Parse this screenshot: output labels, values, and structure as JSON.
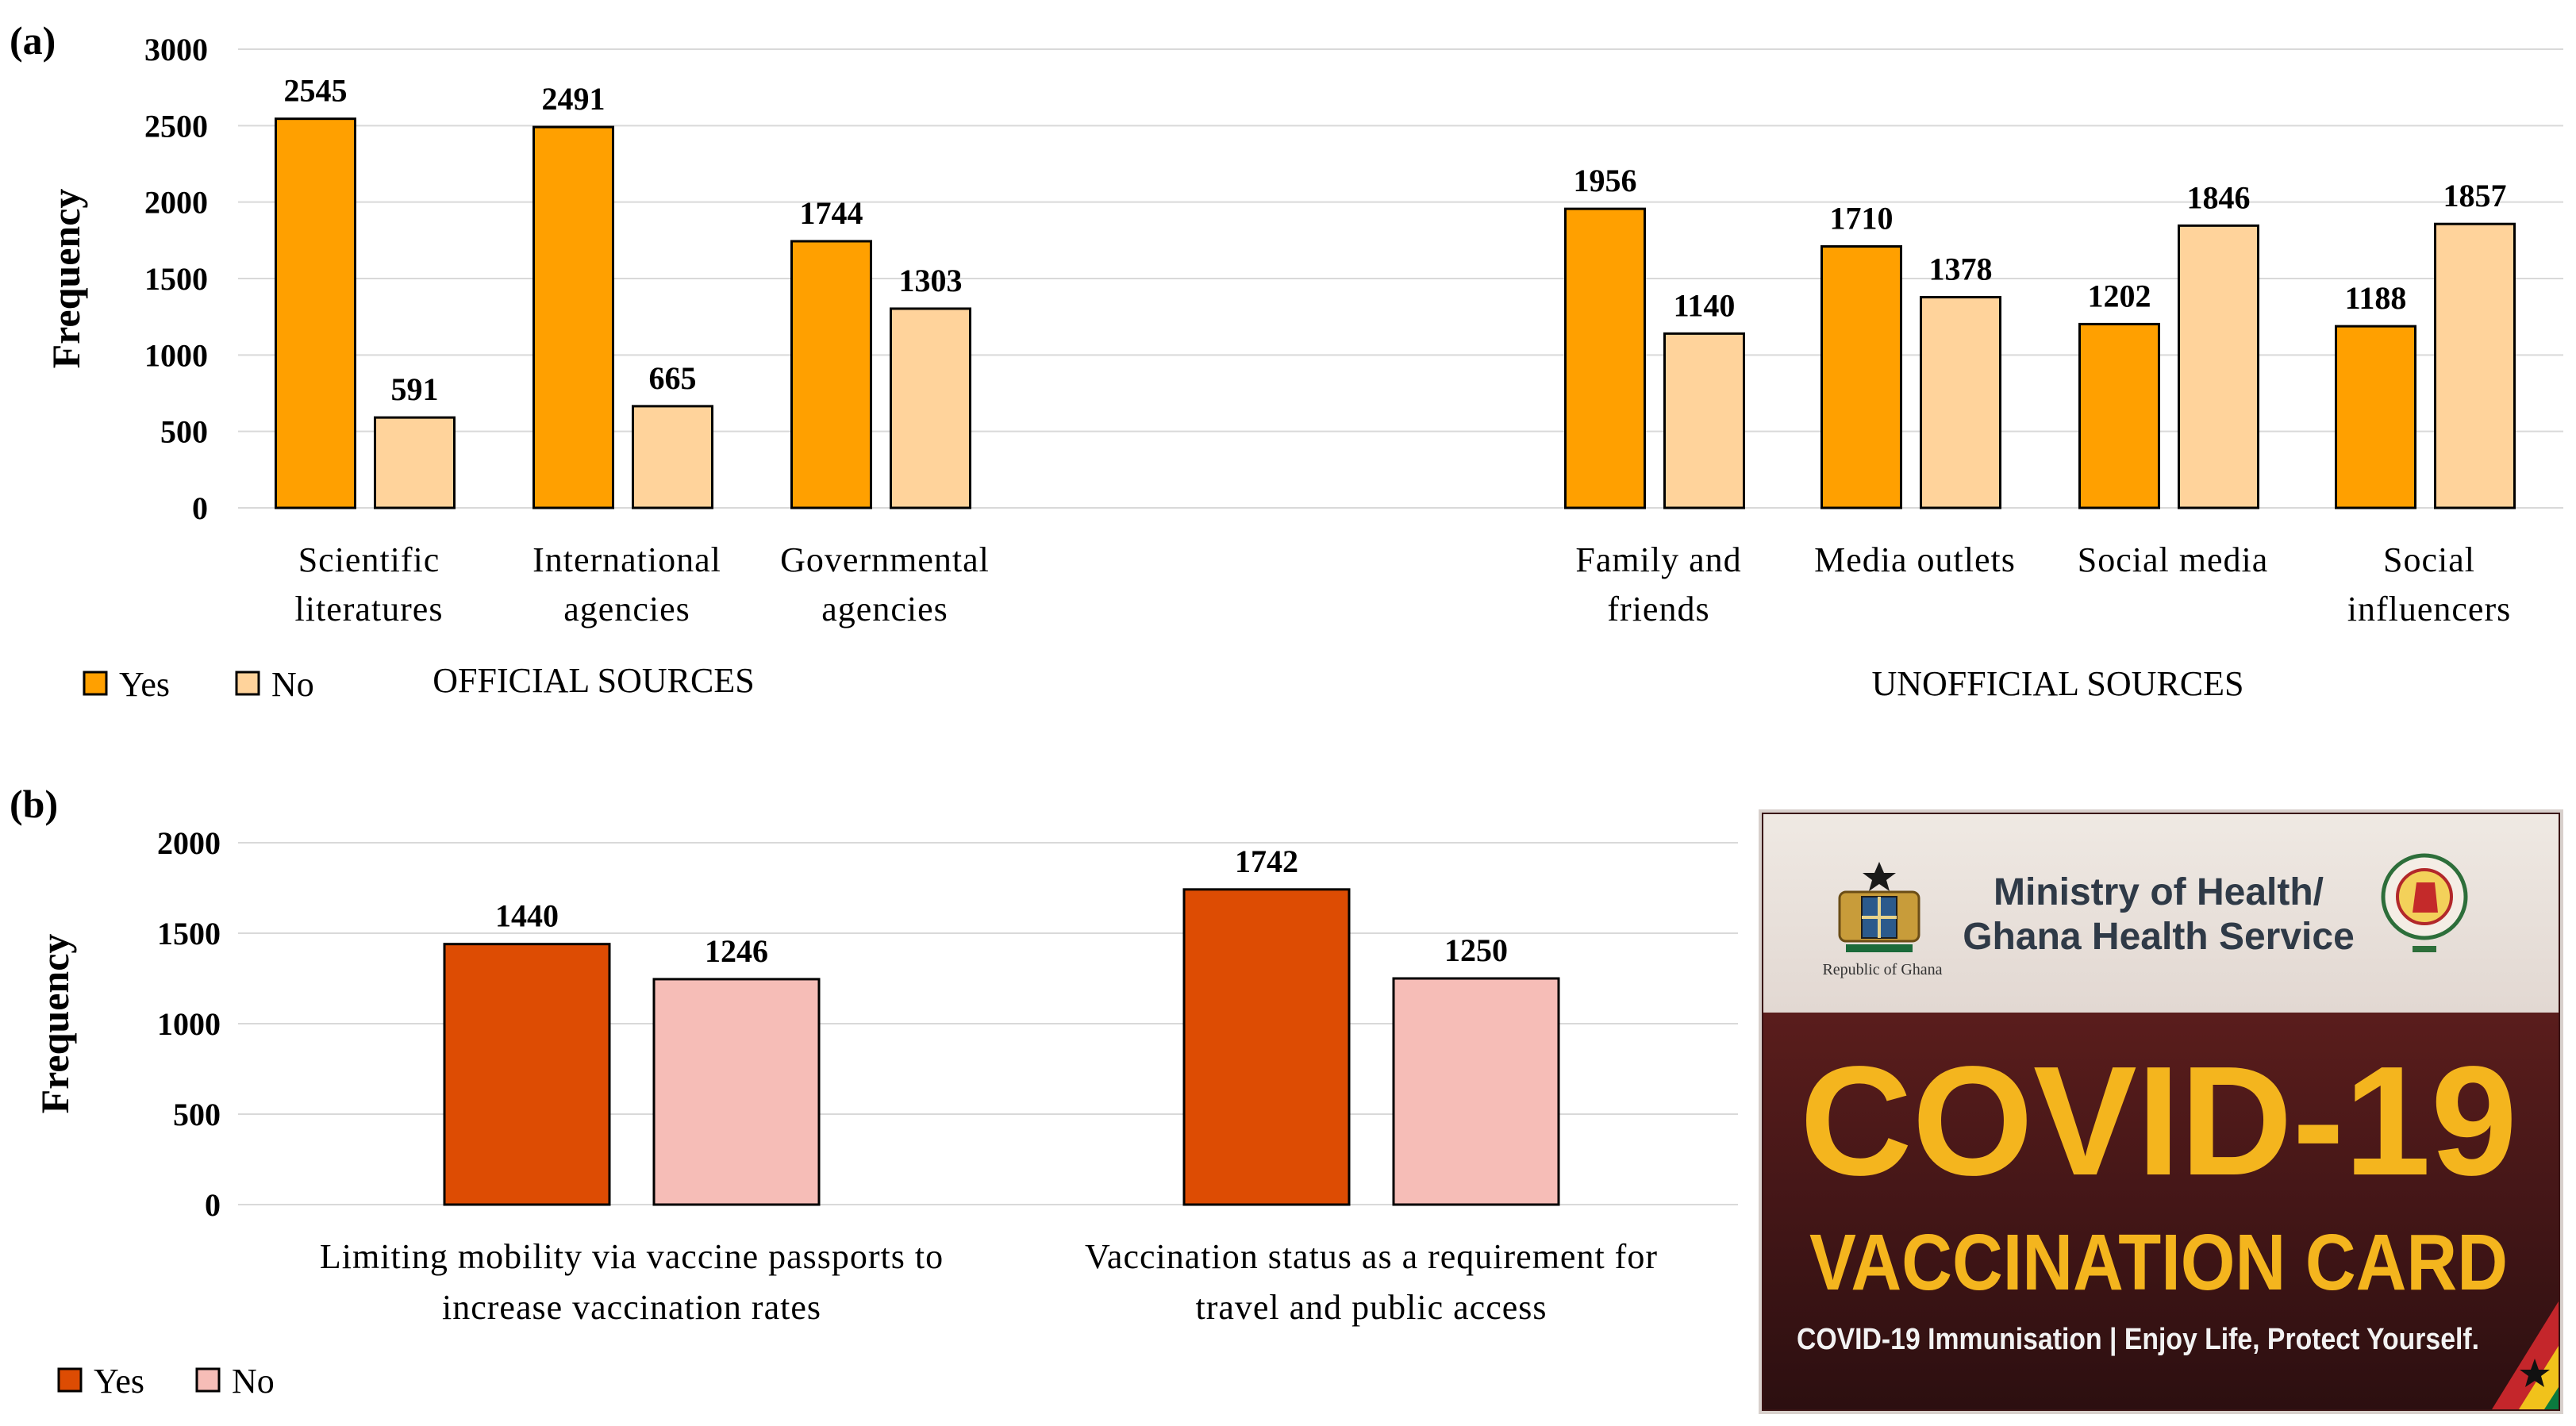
{
  "panel_labels": {
    "a": "(a)",
    "b": "(b)"
  },
  "chart_data": [
    {
      "id": "a",
      "type": "bar",
      "title": "",
      "ylabel": "Frequency",
      "xlabel": "",
      "ylim": [
        0,
        3000
      ],
      "yticks": [
        0,
        500,
        1000,
        1500,
        2000,
        2500,
        3000
      ],
      "grid": true,
      "legend_position": "bottom-left",
      "groups": [
        {
          "label": "OFFICIAL SOURCES",
          "categories": [
            [
              "Scientific",
              "literatures"
            ],
            [
              "International",
              "agencies"
            ],
            [
              "Governmental",
              "agencies"
            ]
          ]
        },
        {
          "label": "UNOFFICIAL SOURCES",
          "categories": [
            [
              "Family and",
              "friends"
            ],
            [
              "Media outlets"
            ],
            [
              "Social media"
            ],
            [
              "Social",
              "influencers"
            ]
          ]
        }
      ],
      "series": [
        {
          "name": "Yes",
          "color": "#ffa000",
          "values": [
            2545,
            2491,
            1744,
            1956,
            1710,
            1202,
            1188
          ]
        },
        {
          "name": "No",
          "color": "#ffd39b",
          "values": [
            591,
            665,
            1303,
            1140,
            1378,
            1846,
            1857
          ]
        }
      ]
    },
    {
      "id": "b",
      "type": "bar",
      "title": "",
      "ylabel": "Frequency",
      "xlabel": "",
      "ylim": [
        0,
        2000
      ],
      "yticks": [
        0,
        500,
        1000,
        1500,
        2000
      ],
      "grid": true,
      "legend_position": "bottom-left",
      "categories": [
        [
          "Limiting mobility via vaccine passports to",
          "increase vaccination rates"
        ],
        [
          "Vaccination status as a requirement for",
          "travel and public access"
        ]
      ],
      "series": [
        {
          "name": "Yes",
          "color": "#dd4c03",
          "values": [
            1440,
            1742
          ]
        },
        {
          "name": "No",
          "color": "#f6bdb7",
          "values": [
            1246,
            1250
          ]
        }
      ]
    }
  ],
  "photo": {
    "header_line1": "Ministry of Health/",
    "header_line2": "Ghana Health Service",
    "crest_caption": "Republic of Ghana",
    "title_line1": "COVID-19",
    "title_line2": "VACCINATION CARD",
    "tagline": "COVID-19 Immunisation | Enjoy Life, Protect Yourself."
  }
}
